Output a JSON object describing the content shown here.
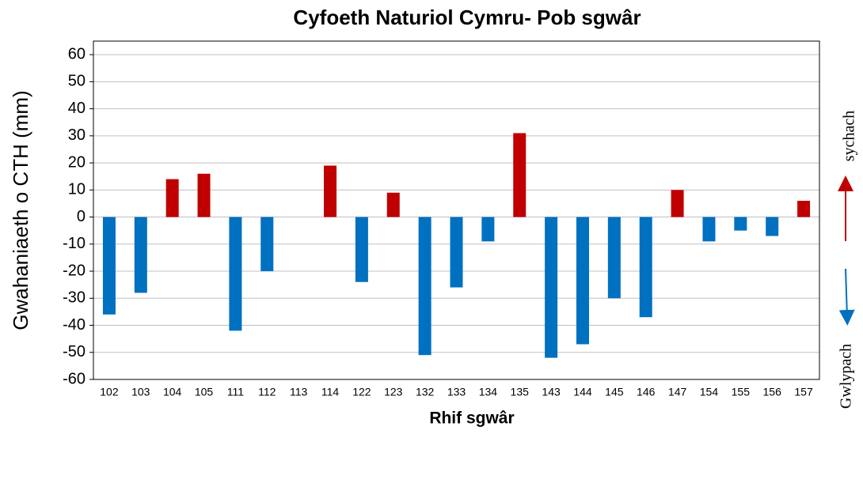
{
  "chart_data": {
    "type": "bar",
    "title": "Cyfoeth Naturiol Cymru- Pob sgwâr",
    "x_label": "Rhif sgwâr",
    "y_label": "Gwahaniaeth o CTH (mm)",
    "annotations": [
      "sychach",
      "Gwlypach"
    ],
    "categories": [
      "102",
      "103",
      "104",
      "105",
      "111",
      "112",
      "113",
      "114",
      "122",
      "123",
      "132",
      "133",
      "134",
      "135",
      "143",
      "144",
      "145",
      "146",
      "147",
      "154",
      "155",
      "156",
      "157"
    ],
    "values": [
      -36,
      -28,
      14,
      16,
      -42,
      -20,
      null,
      19,
      -24,
      9,
      -51,
      -26,
      -9,
      31,
      -52,
      -47,
      -30,
      -37,
      10,
      -9,
      -5,
      -7,
      6
    ],
    "positive_color": "#c00000",
    "negative_color": "#0070c0",
    "ylim": [
      -60,
      65
    ],
    "yticks": [
      -60,
      -50,
      -40,
      -30,
      -20,
      -10,
      0,
      10,
      20,
      30,
      40,
      50,
      60
    ],
    "grid": true
  }
}
